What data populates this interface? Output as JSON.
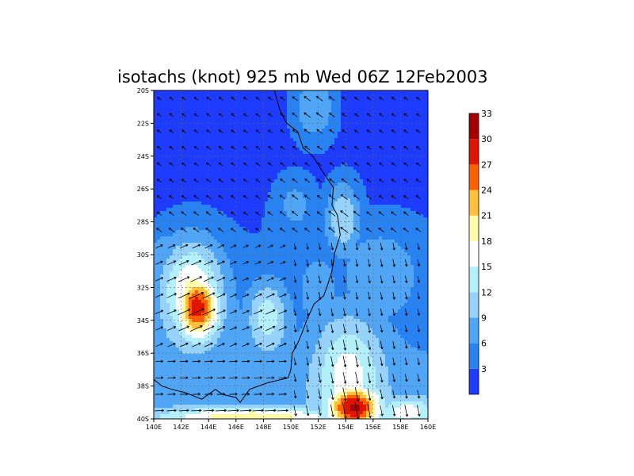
{
  "chart_data": {
    "type": "heatmap",
    "title": "isotachs (knot) 925 mb Wed 06Z 12Feb2003",
    "xlabel": "",
    "ylabel": "",
    "x_ticks": [
      "140E",
      "142E",
      "144E",
      "146E",
      "148E",
      "150E",
      "152E",
      "154E",
      "156E",
      "158E",
      "160E"
    ],
    "y_ticks": [
      "20S",
      "22S",
      "24S",
      "26S",
      "28S",
      "30S",
      "32S",
      "34S",
      "36S",
      "38S",
      "40S"
    ],
    "xlim": [
      140,
      160
    ],
    "ylim": [
      -40,
      -20
    ],
    "grid": true,
    "legend_position": "right",
    "colorbar": {
      "labels": [
        "3",
        "6",
        "9",
        "12",
        "15",
        "18",
        "21",
        "24",
        "27",
        "30",
        "33"
      ],
      "colors": [
        "#1e3cff",
        "#2882f0",
        "#50a5f5",
        "#96d2fa",
        "#b4f0fa",
        "#ffffff",
        "#fffaaa",
        "#ffc03c",
        "#ff6000",
        "#e11400",
        "#a50000"
      ]
    },
    "wind_speed_centers": [
      {
        "lon": 143.2,
        "lat": -33.2,
        "speed": 32,
        "sx": 1.1,
        "sy": 1.4
      },
      {
        "lon": 142.8,
        "lat": -32.3,
        "speed": 22,
        "sx": 1.6,
        "sy": 2.2
      },
      {
        "lon": 154.6,
        "lat": -39.3,
        "speed": 34,
        "sx": 1.3,
        "sy": 0.9
      },
      {
        "lon": 154.2,
        "lat": -37.6,
        "speed": 20,
        "sx": 1.7,
        "sy": 2.6
      },
      {
        "lon": 153.4,
        "lat": -35.5,
        "speed": 14,
        "sx": 1.4,
        "sy": 1.6
      },
      {
        "lon": 148.3,
        "lat": -33.8,
        "speed": 17,
        "sx": 1.0,
        "sy": 1.5
      },
      {
        "lon": 147.2,
        "lat": -39.9,
        "speed": 24,
        "sx": 4.5,
        "sy": 0.4
      },
      {
        "lon": 158.5,
        "lat": -39.6,
        "speed": 20,
        "sx": 1.4,
        "sy": 0.6
      },
      {
        "lon": 153.8,
        "lat": -27.8,
        "speed": 15,
        "sx": 0.9,
        "sy": 1.6
      },
      {
        "lon": 150.3,
        "lat": -27.0,
        "speed": 10,
        "sx": 1.1,
        "sy": 1.4
      },
      {
        "lon": 151.7,
        "lat": -21.0,
        "speed": 12,
        "sx": 1.2,
        "sy": 1.6
      },
      {
        "lon": 145.0,
        "lat": -37.2,
        "speed": 12,
        "sx": 3.0,
        "sy": 1.2
      },
      {
        "lon": 141.0,
        "lat": -29.8,
        "speed": 11,
        "sx": 1.0,
        "sy": 1.0
      },
      {
        "lon": 156.5,
        "lat": -31.0,
        "speed": 11,
        "sx": 2.2,
        "sy": 2.0
      },
      {
        "lon": 152.0,
        "lat": -32.0,
        "speed": 11,
        "sx": 1.0,
        "sy": 1.5
      }
    ],
    "wind_speed_base": 5,
    "wind_speed_base_by_lat": [
      {
        "lat": -20,
        "speed": 4
      },
      {
        "lat": -26,
        "speed": 5
      },
      {
        "lat": -32,
        "speed": 7
      },
      {
        "lat": -36,
        "speed": 9
      },
      {
        "lat": -40,
        "speed": 11
      }
    ],
    "coastline": [
      [
        148.8,
        -20.0
      ],
      [
        149.2,
        -21.2
      ],
      [
        149.7,
        -22.0
      ],
      [
        150.5,
        -22.5
      ],
      [
        150.9,
        -23.5
      ],
      [
        151.6,
        -24.0
      ],
      [
        152.6,
        -25.3
      ],
      [
        153.1,
        -25.9
      ],
      [
        153.0,
        -27.0
      ],
      [
        153.4,
        -27.6
      ],
      [
        153.6,
        -28.8
      ],
      [
        153.2,
        -29.9
      ],
      [
        153.0,
        -31.0
      ],
      [
        152.7,
        -31.8
      ],
      [
        152.4,
        -32.5
      ],
      [
        151.7,
        -33.0
      ],
      [
        151.2,
        -33.9
      ],
      [
        150.8,
        -34.8
      ],
      [
        150.5,
        -35.4
      ],
      [
        150.1,
        -36.0
      ],
      [
        150.0,
        -37.0
      ],
      [
        149.8,
        -37.5
      ],
      [
        148.3,
        -37.8
      ],
      [
        147.0,
        -38.2
      ],
      [
        146.3,
        -39.0
      ],
      [
        146.0,
        -38.7
      ],
      [
        145.0,
        -38.5
      ],
      [
        144.5,
        -38.2
      ],
      [
        143.5,
        -38.8
      ],
      [
        142.3,
        -38.4
      ],
      [
        141.3,
        -38.2
      ],
      [
        140.6,
        -38.0
      ],
      [
        140.0,
        -37.6
      ]
    ],
    "wind_direction_zones": [
      {
        "lat_max": -20,
        "lat_min": -29,
        "lon_min": 140,
        "lon_max": 160,
        "u": -0.8,
        "v": 0.6
      },
      {
        "lat_max": -29,
        "lat_min": -36,
        "lon_min": 140,
        "lon_max": 150,
        "u": 0.9,
        "v": 0.4
      },
      {
        "lat_max": -29,
        "lat_min": -40,
        "lon_min": 150,
        "lon_max": 160,
        "u": 0.2,
        "v": -0.98
      },
      {
        "lat_max": -36,
        "lat_min": -40,
        "lon_min": 140,
        "lon_max": 150,
        "u": 1.0,
        "v": 0.05
      }
    ]
  }
}
